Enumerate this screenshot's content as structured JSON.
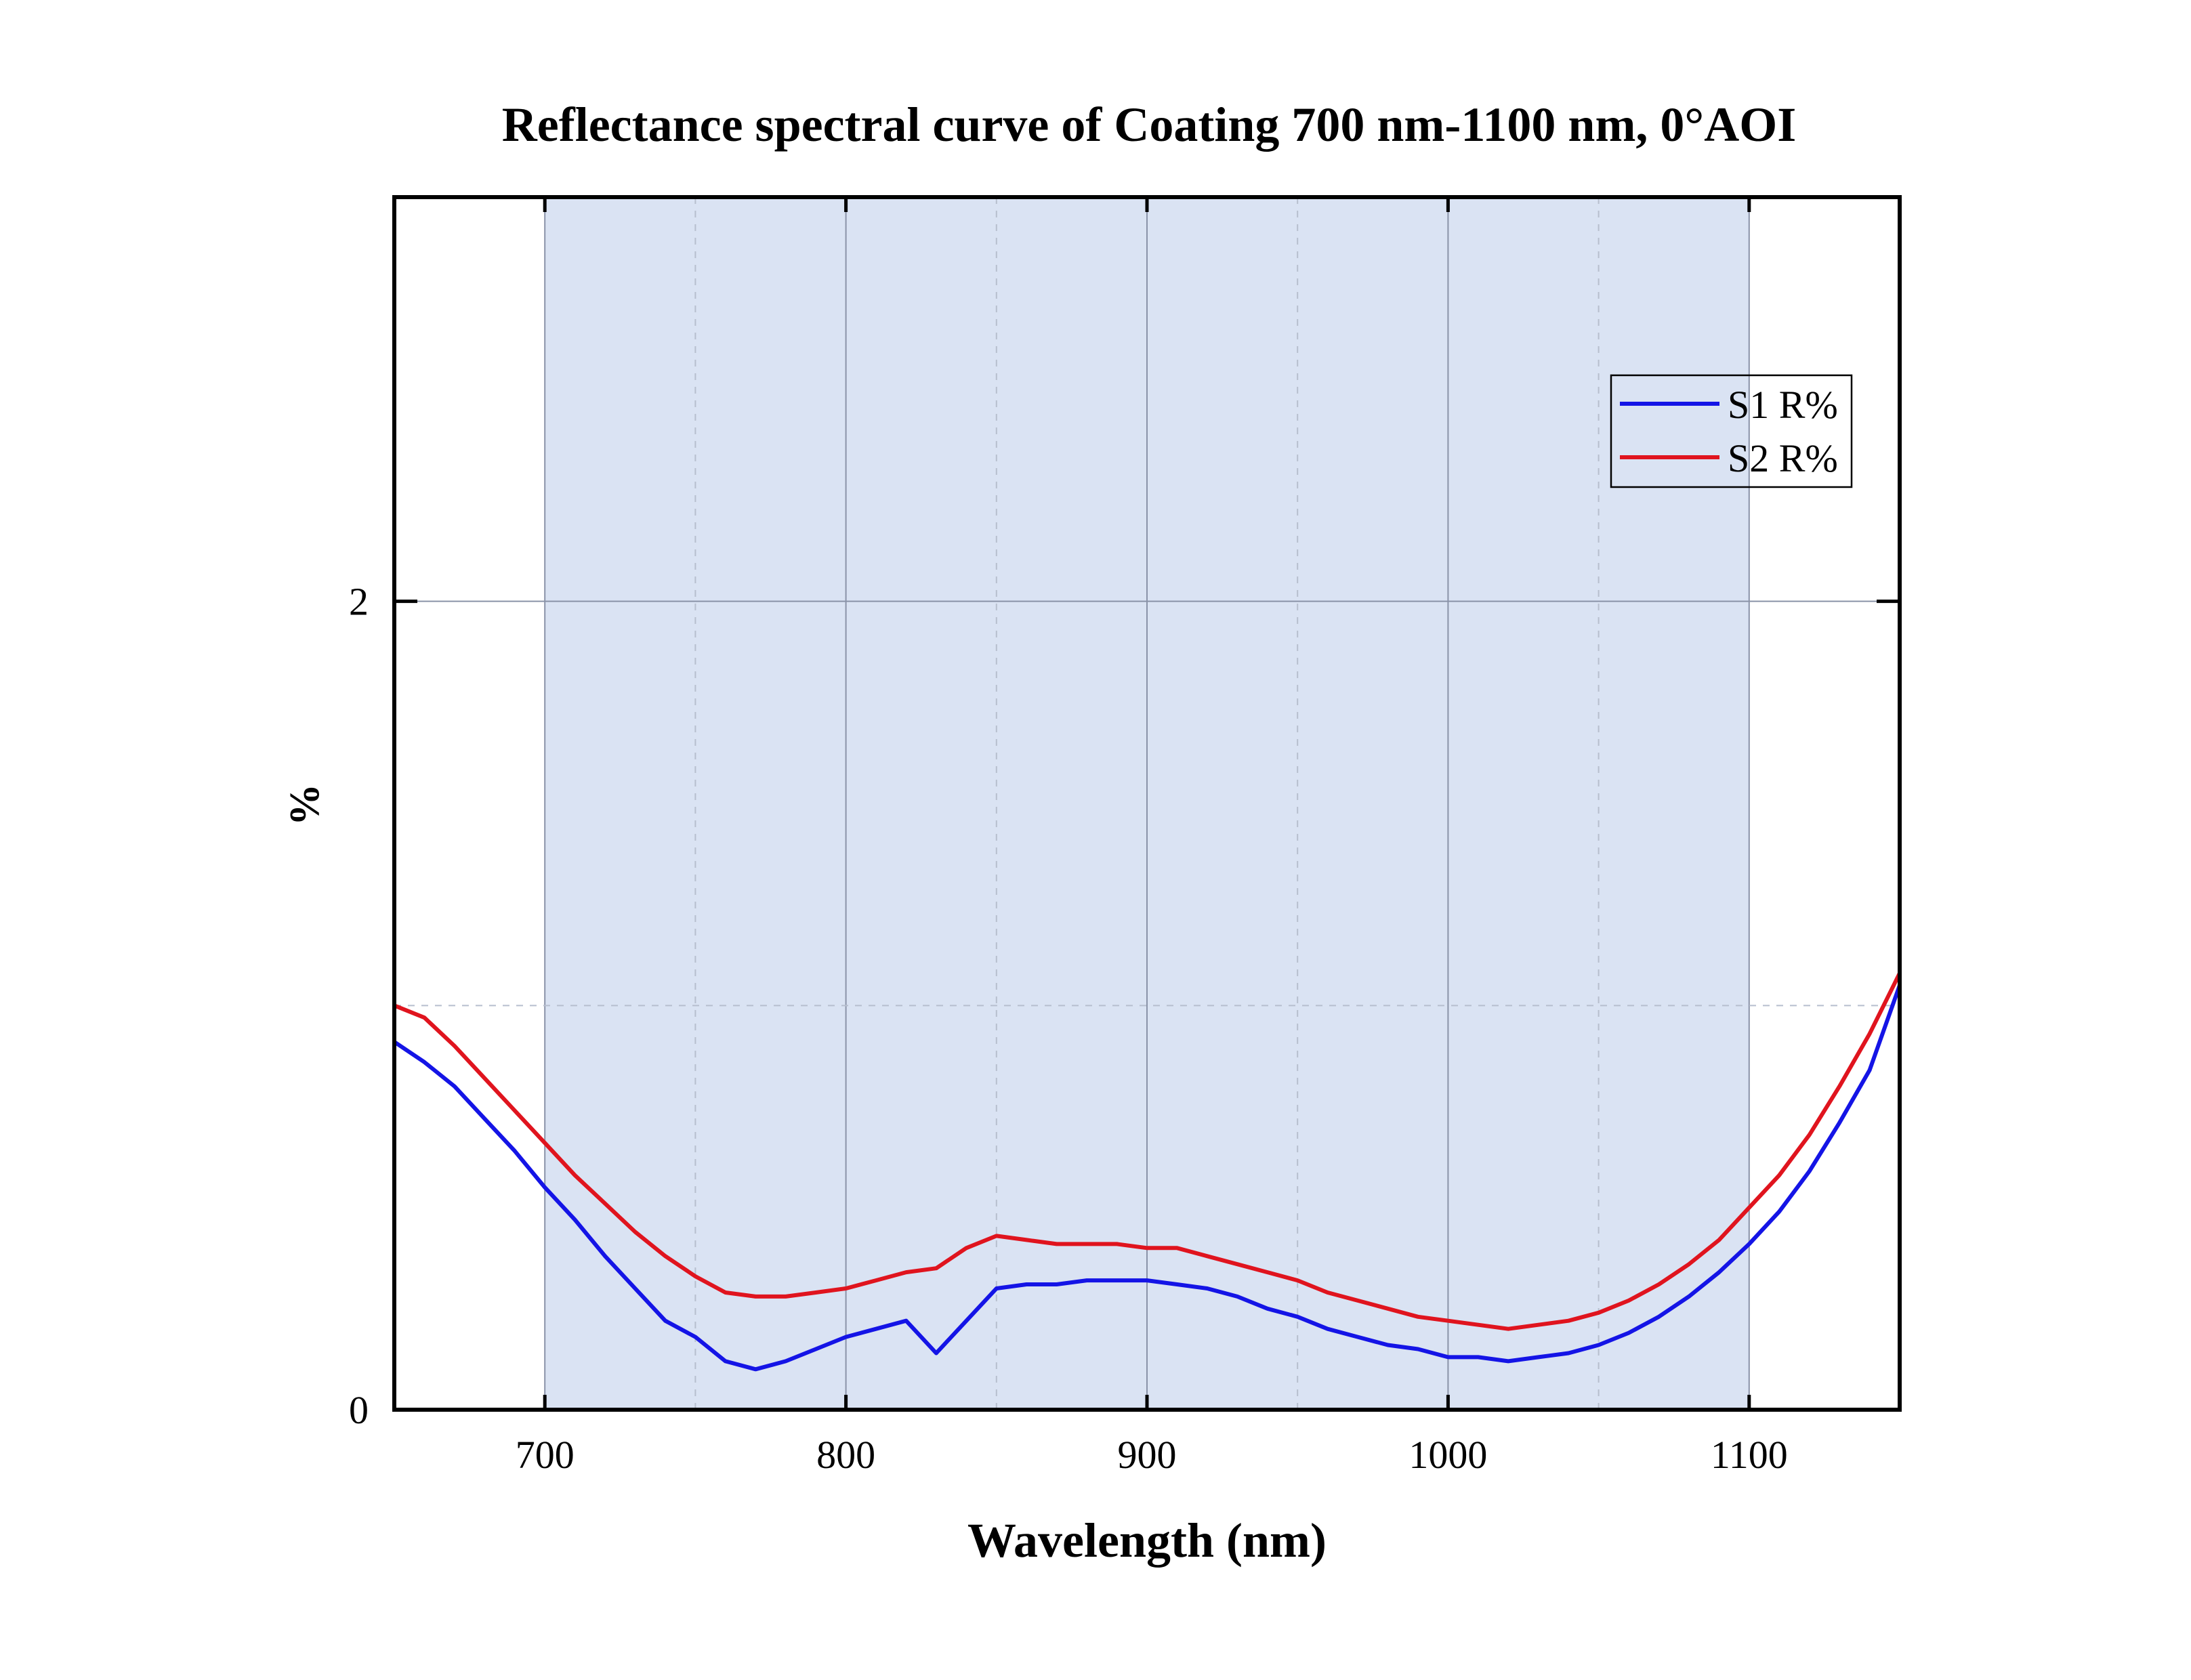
{
  "chart_data": {
    "type": "line",
    "title": "Reflectance spectral curve of Coating 700 nm-1100 nm,  0°AOI",
    "xlabel": "Wavelength (nm)",
    "ylabel": "%",
    "xlim": [
      650,
      1150
    ],
    "ylim": [
      0,
      3.0
    ],
    "x_ticks": [
      "700",
      "800",
      "900",
      "1000",
      "1100"
    ],
    "x_tick_values": [
      700,
      800,
      900,
      1000,
      1100
    ],
    "y_ticks": [
      "0",
      "2"
    ],
    "y_tick_values": [
      0,
      2
    ],
    "minor_grid_x": [
      750,
      850,
      950,
      1050
    ],
    "minor_grid_y": [
      1
    ],
    "highlight_band": [
      700,
      1100
    ],
    "grid": true,
    "legend_position": "top-right",
    "colors": {
      "band": "#dae3f3",
      "major_grid": "#8a93a8",
      "minor_grid": "#b7bfce",
      "S1": "#1414e6",
      "S2": "#e0141e"
    },
    "series": [
      {
        "name": "S1 R%",
        "color": "#1414e6",
        "x": [
          650,
          660,
          670,
          680,
          690,
          700,
          710,
          720,
          730,
          740,
          750,
          760,
          770,
          780,
          790,
          800,
          810,
          820,
          830,
          840,
          850,
          860,
          870,
          880,
          890,
          900,
          910,
          920,
          930,
          940,
          950,
          960,
          970,
          980,
          990,
          1000,
          1010,
          1020,
          1030,
          1040,
          1050,
          1060,
          1070,
          1080,
          1090,
          1100,
          1110,
          1120,
          1130,
          1140,
          1150
        ],
        "y": [
          0.91,
          0.86,
          0.8,
          0.72,
          0.64,
          0.55,
          0.47,
          0.38,
          0.3,
          0.22,
          0.18,
          0.12,
          0.1,
          0.12,
          0.15,
          0.18,
          0.2,
          0.22,
          0.14,
          0.22,
          0.3,
          0.31,
          0.31,
          0.32,
          0.32,
          0.32,
          0.31,
          0.3,
          0.28,
          0.25,
          0.23,
          0.2,
          0.18,
          0.16,
          0.15,
          0.13,
          0.13,
          0.12,
          0.13,
          0.14,
          0.16,
          0.19,
          0.23,
          0.28,
          0.34,
          0.41,
          0.49,
          0.59,
          0.71,
          0.84,
          1.05
        ]
      },
      {
        "name": "S2 R%",
        "color": "#e0141e",
        "x": [
          650,
          660,
          670,
          680,
          690,
          700,
          710,
          720,
          730,
          740,
          750,
          760,
          770,
          780,
          790,
          800,
          810,
          820,
          830,
          840,
          850,
          860,
          870,
          880,
          890,
          900,
          910,
          920,
          930,
          940,
          950,
          960,
          970,
          980,
          990,
          1000,
          1010,
          1020,
          1030,
          1040,
          1050,
          1060,
          1070,
          1080,
          1090,
          1100,
          1110,
          1120,
          1130,
          1140,
          1150
        ],
        "y": [
          1.0,
          0.97,
          0.9,
          0.82,
          0.74,
          0.66,
          0.58,
          0.51,
          0.44,
          0.38,
          0.33,
          0.29,
          0.28,
          0.28,
          0.29,
          0.3,
          0.32,
          0.34,
          0.35,
          0.4,
          0.43,
          0.42,
          0.41,
          0.41,
          0.41,
          0.4,
          0.4,
          0.38,
          0.36,
          0.34,
          0.32,
          0.29,
          0.27,
          0.25,
          0.23,
          0.22,
          0.21,
          0.2,
          0.21,
          0.22,
          0.24,
          0.27,
          0.31,
          0.36,
          0.42,
          0.5,
          0.58,
          0.68,
          0.8,
          0.93,
          1.08
        ]
      }
    ]
  }
}
